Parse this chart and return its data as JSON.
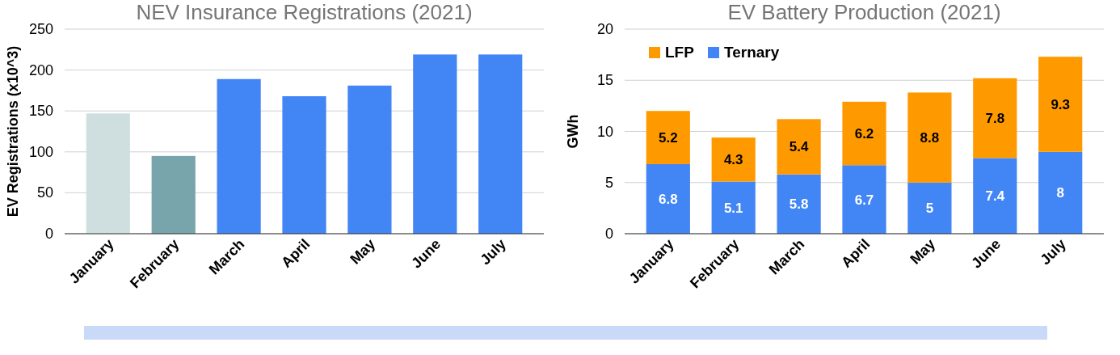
{
  "chart_data": [
    {
      "type": "bar",
      "title": "NEV Insurance Registrations (2021)",
      "ylabel": "EV Registrations (x10^3)",
      "categories": [
        "January",
        "February",
        "March",
        "April",
        "May",
        "June",
        "July"
      ],
      "values": [
        147,
        95,
        189,
        168,
        181,
        219,
        219
      ],
      "colors": [
        "#cfdfe0",
        "#78a5ab",
        "#4285f4",
        "#4285f4",
        "#4285f4",
        "#4285f4",
        "#4285f4"
      ],
      "ylim": [
        0,
        250
      ],
      "yticks": [
        0,
        50,
        100,
        150,
        200,
        250
      ],
      "grid": "y"
    },
    {
      "type": "bar",
      "title": "EV Battery Production (2021)",
      "ylabel": "GWh",
      "stacked": true,
      "categories": [
        "January",
        "February",
        "March",
        "April",
        "May",
        "June",
        "July"
      ],
      "series": [
        {
          "name": "Ternary",
          "color": "#4285f4",
          "values": [
            6.8,
            5.1,
            5.8,
            6.7,
            5,
            7.4,
            8
          ]
        },
        {
          "name": "LFP",
          "color": "#ff9900",
          "values": [
            5.2,
            4.3,
            5.4,
            6.2,
            8.8,
            7.8,
            9.3
          ]
        }
      ],
      "ylim": [
        0,
        20
      ],
      "yticks": [
        0,
        5,
        10,
        15,
        20
      ],
      "grid": "y",
      "legend": "top left",
      "data_labels": true
    }
  ]
}
